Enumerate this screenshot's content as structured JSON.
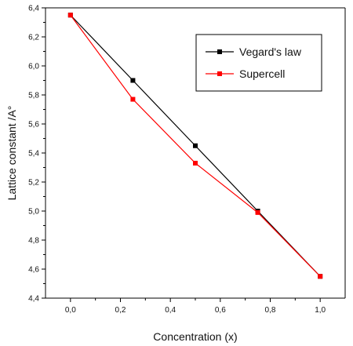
{
  "chart_data": {
    "type": "line",
    "xlabel": "Concentration (x)",
    "ylabel": "Lattice constant /A°",
    "xlim": [
      -0.1,
      1.1
    ],
    "ylim": [
      4.4,
      6.4
    ],
    "xticks": [
      0.0,
      0.2,
      0.4,
      0.6,
      0.8,
      1.0
    ],
    "xtick_labels": [
      "0,0",
      "0,2",
      "0,4",
      "0,6",
      "0,8",
      "1,0"
    ],
    "yticks": [
      4.4,
      4.6,
      4.8,
      5.0,
      5.2,
      5.4,
      5.6,
      5.8,
      6.0,
      6.2,
      6.4
    ],
    "ytick_labels": [
      "4,4",
      "4,6",
      "4,8",
      "5,0",
      "5,2",
      "5,4",
      "5,6",
      "5,8",
      "6,0",
      "6,2",
      "6,4"
    ],
    "grid": false,
    "legend": "top-right",
    "series": [
      {
        "name": "Vegard's law",
        "color": "#000000",
        "marker": "square",
        "x": [
          0.0,
          0.25,
          0.5,
          0.75,
          1.0
        ],
        "y": [
          6.35,
          5.9,
          5.45,
          5.0,
          4.55
        ]
      },
      {
        "name": "Supercell",
        "color": "#ff0000",
        "marker": "square",
        "x": [
          0.0,
          0.25,
          0.5,
          0.75,
          1.0
        ],
        "y": [
          6.35,
          5.77,
          5.33,
          4.99,
          4.55
        ]
      }
    ]
  }
}
